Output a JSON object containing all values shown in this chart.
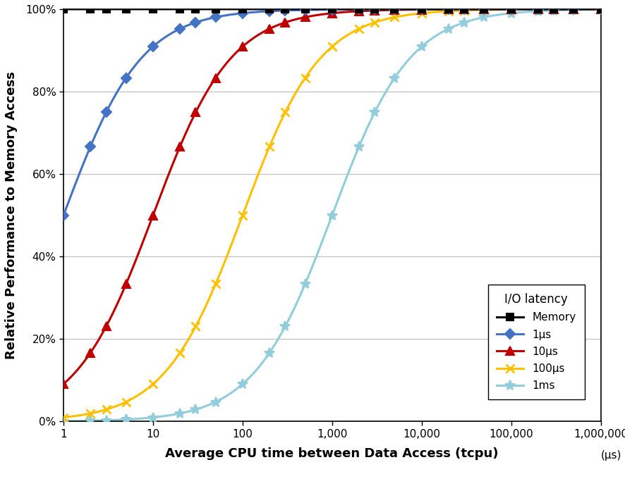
{
  "xlabel": "Average CPU time between Data Access (tcpu)",
  "ylabel": "Relative Performance to Memory Access",
  "unit_label": "(μs)",
  "xmin": 1,
  "xmax": 1000000,
  "ymin": 0,
  "ymax": 1.0,
  "series": [
    {
      "label": "Memory",
      "latency_us": 0.0001,
      "color": "#000000",
      "marker": "s",
      "markersize": 7,
      "linewidth": 2.2,
      "zorder": 5,
      "markerfacecolor": "#000000"
    },
    {
      "label": "1μs",
      "latency_us": 1,
      "color": "#4472C4",
      "marker": "D",
      "markersize": 7,
      "linewidth": 2.2,
      "zorder": 4,
      "markerfacecolor": "#4472C4"
    },
    {
      "label": "10μs",
      "latency_us": 10,
      "color": "#C00000",
      "marker": "^",
      "markersize": 8,
      "linewidth": 2.2,
      "zorder": 3,
      "markerfacecolor": "#C00000"
    },
    {
      "label": "100μs",
      "latency_us": 100,
      "color": "#FFC000",
      "marker": "x",
      "markersize": 9,
      "linewidth": 2.2,
      "zorder": 2,
      "markerfacecolor": "#FFC000",
      "markeredgewidth": 2.0
    },
    {
      "label": "1ms",
      "latency_us": 1000,
      "color": "#92CDDC",
      "marker": "*",
      "markersize": 10,
      "linewidth": 2.2,
      "zorder": 1,
      "markerfacecolor": "#92CDDC"
    }
  ],
  "xticks": [
    1,
    10,
    100,
    1000,
    10000,
    100000,
    1000000
  ],
  "xticklabels": [
    "1",
    "10",
    "100",
    "1,000",
    "10,000",
    "100,000",
    "1,000,000"
  ],
  "yticks": [
    0.0,
    0.2,
    0.4,
    0.6,
    0.8,
    1.0
  ],
  "yticklabels": [
    "0%",
    "20%",
    "40%",
    "60%",
    "80%",
    "100%"
  ],
  "legend_title": "I/O latency",
  "background_color": "#FFFFFF",
  "grid_color": "#BBBBBB",
  "marker_positions": [
    1,
    2,
    3,
    5,
    10,
    20,
    30,
    50,
    100,
    200,
    300,
    500,
    1000,
    2000,
    3000,
    5000,
    10000,
    20000,
    30000,
    50000,
    100000,
    200000,
    300000,
    500000,
    1000000
  ]
}
